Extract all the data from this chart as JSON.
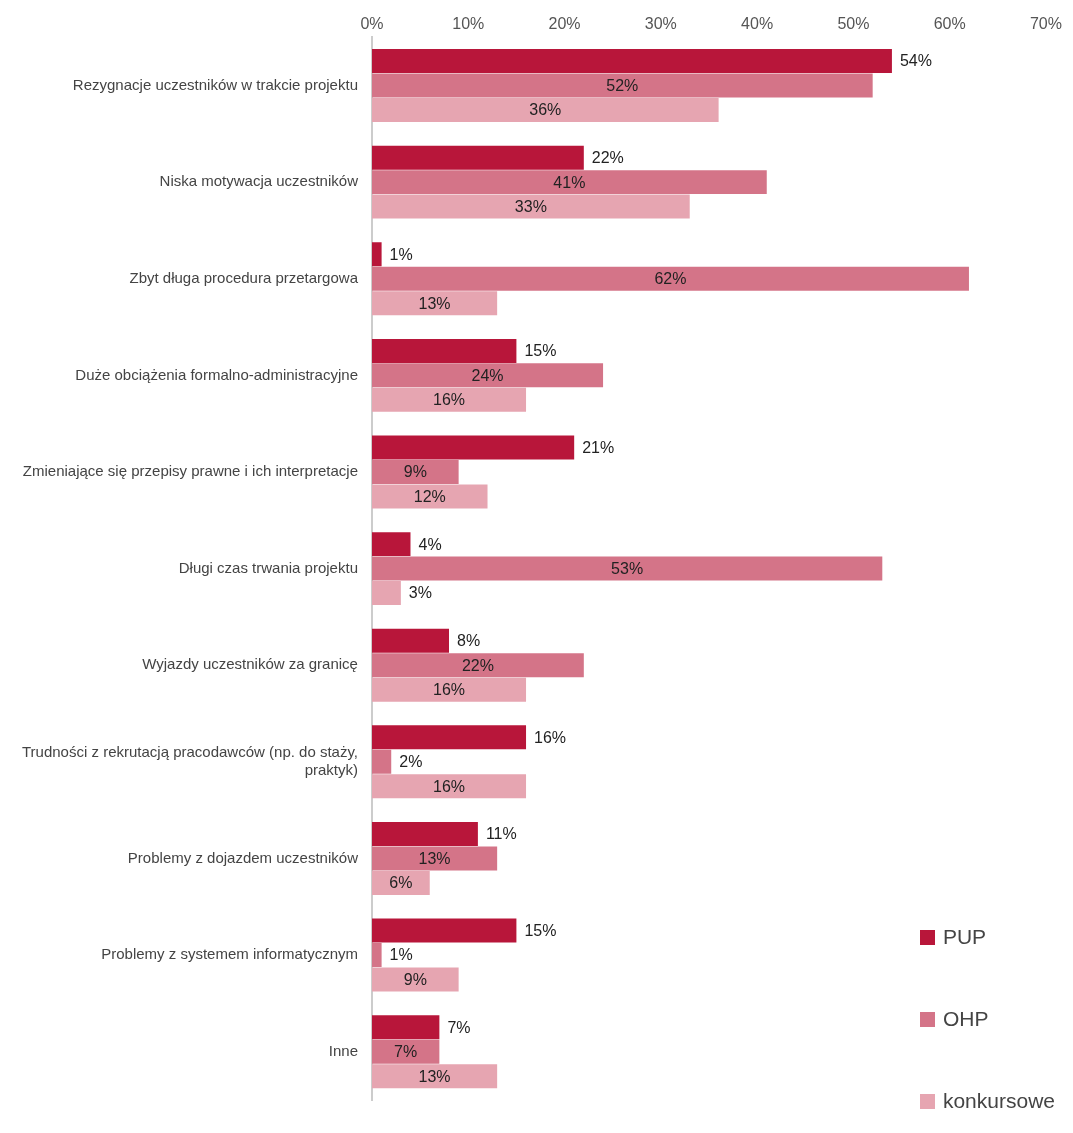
{
  "chart_data": {
    "type": "bar",
    "orientation": "horizontal",
    "categories": [
      "Rezygnacje uczestników w trakcie projektu",
      "Niska motywacja uczestników",
      "Zbyt długa procedura przetargowa",
      "Duże obciążenia formalno-administracyjne",
      "Zmieniające się przepisy prawne i ich interpretacje",
      "Długi czas trwania projektu",
      "Wyjazdy uczestników za granicę",
      "Trudności z rekrutacją pracodawców (np. do staży, praktyk)",
      "Problemy z dojazdem uczestników",
      "Problemy z systemem informatycznym",
      "Inne"
    ],
    "series": [
      {
        "name": "PUP",
        "color": "#b8163a",
        "values": [
          54,
          22,
          1,
          15,
          21,
          4,
          8,
          16,
          11,
          15,
          7
        ],
        "value_labels": [
          "54%",
          "22%",
          "1%",
          "15%",
          "21%",
          "4%",
          "8%",
          "16%",
          "11%",
          "15%",
          "7%"
        ]
      },
      {
        "name": "OHP",
        "color": "#d47488",
        "values": [
          52,
          41,
          62,
          24,
          9,
          53,
          22,
          2,
          13,
          1,
          7
        ],
        "value_labels": [
          "52%",
          "41%",
          "62%",
          "24%",
          "9%",
          "53%",
          "22%",
          "2%",
          "13%",
          "1%",
          "7%"
        ]
      },
      {
        "name": "konkursowe",
        "color": "#e6a5b1",
        "values": [
          36,
          33,
          13,
          16,
          12,
          3,
          16,
          16,
          6,
          9,
          13
        ],
        "value_labels": [
          "36%",
          "33%",
          "13%",
          "16%",
          "12%",
          "3%",
          "16%",
          "16%",
          "6%",
          "9%",
          "13%"
        ]
      }
    ],
    "xlim": [
      0,
      70
    ],
    "xticks": [
      {
        "value": 0,
        "label": "0%"
      },
      {
        "value": 10,
        "label": "10%"
      },
      {
        "value": 20,
        "label": "20%"
      },
      {
        "value": 30,
        "label": "30%"
      },
      {
        "value": 40,
        "label": "40%"
      },
      {
        "value": 50,
        "label": "50%"
      },
      {
        "value": 60,
        "label": "60%"
      },
      {
        "value": 70,
        "label": "70%"
      }
    ],
    "grid": false,
    "legend": "bottom right"
  }
}
